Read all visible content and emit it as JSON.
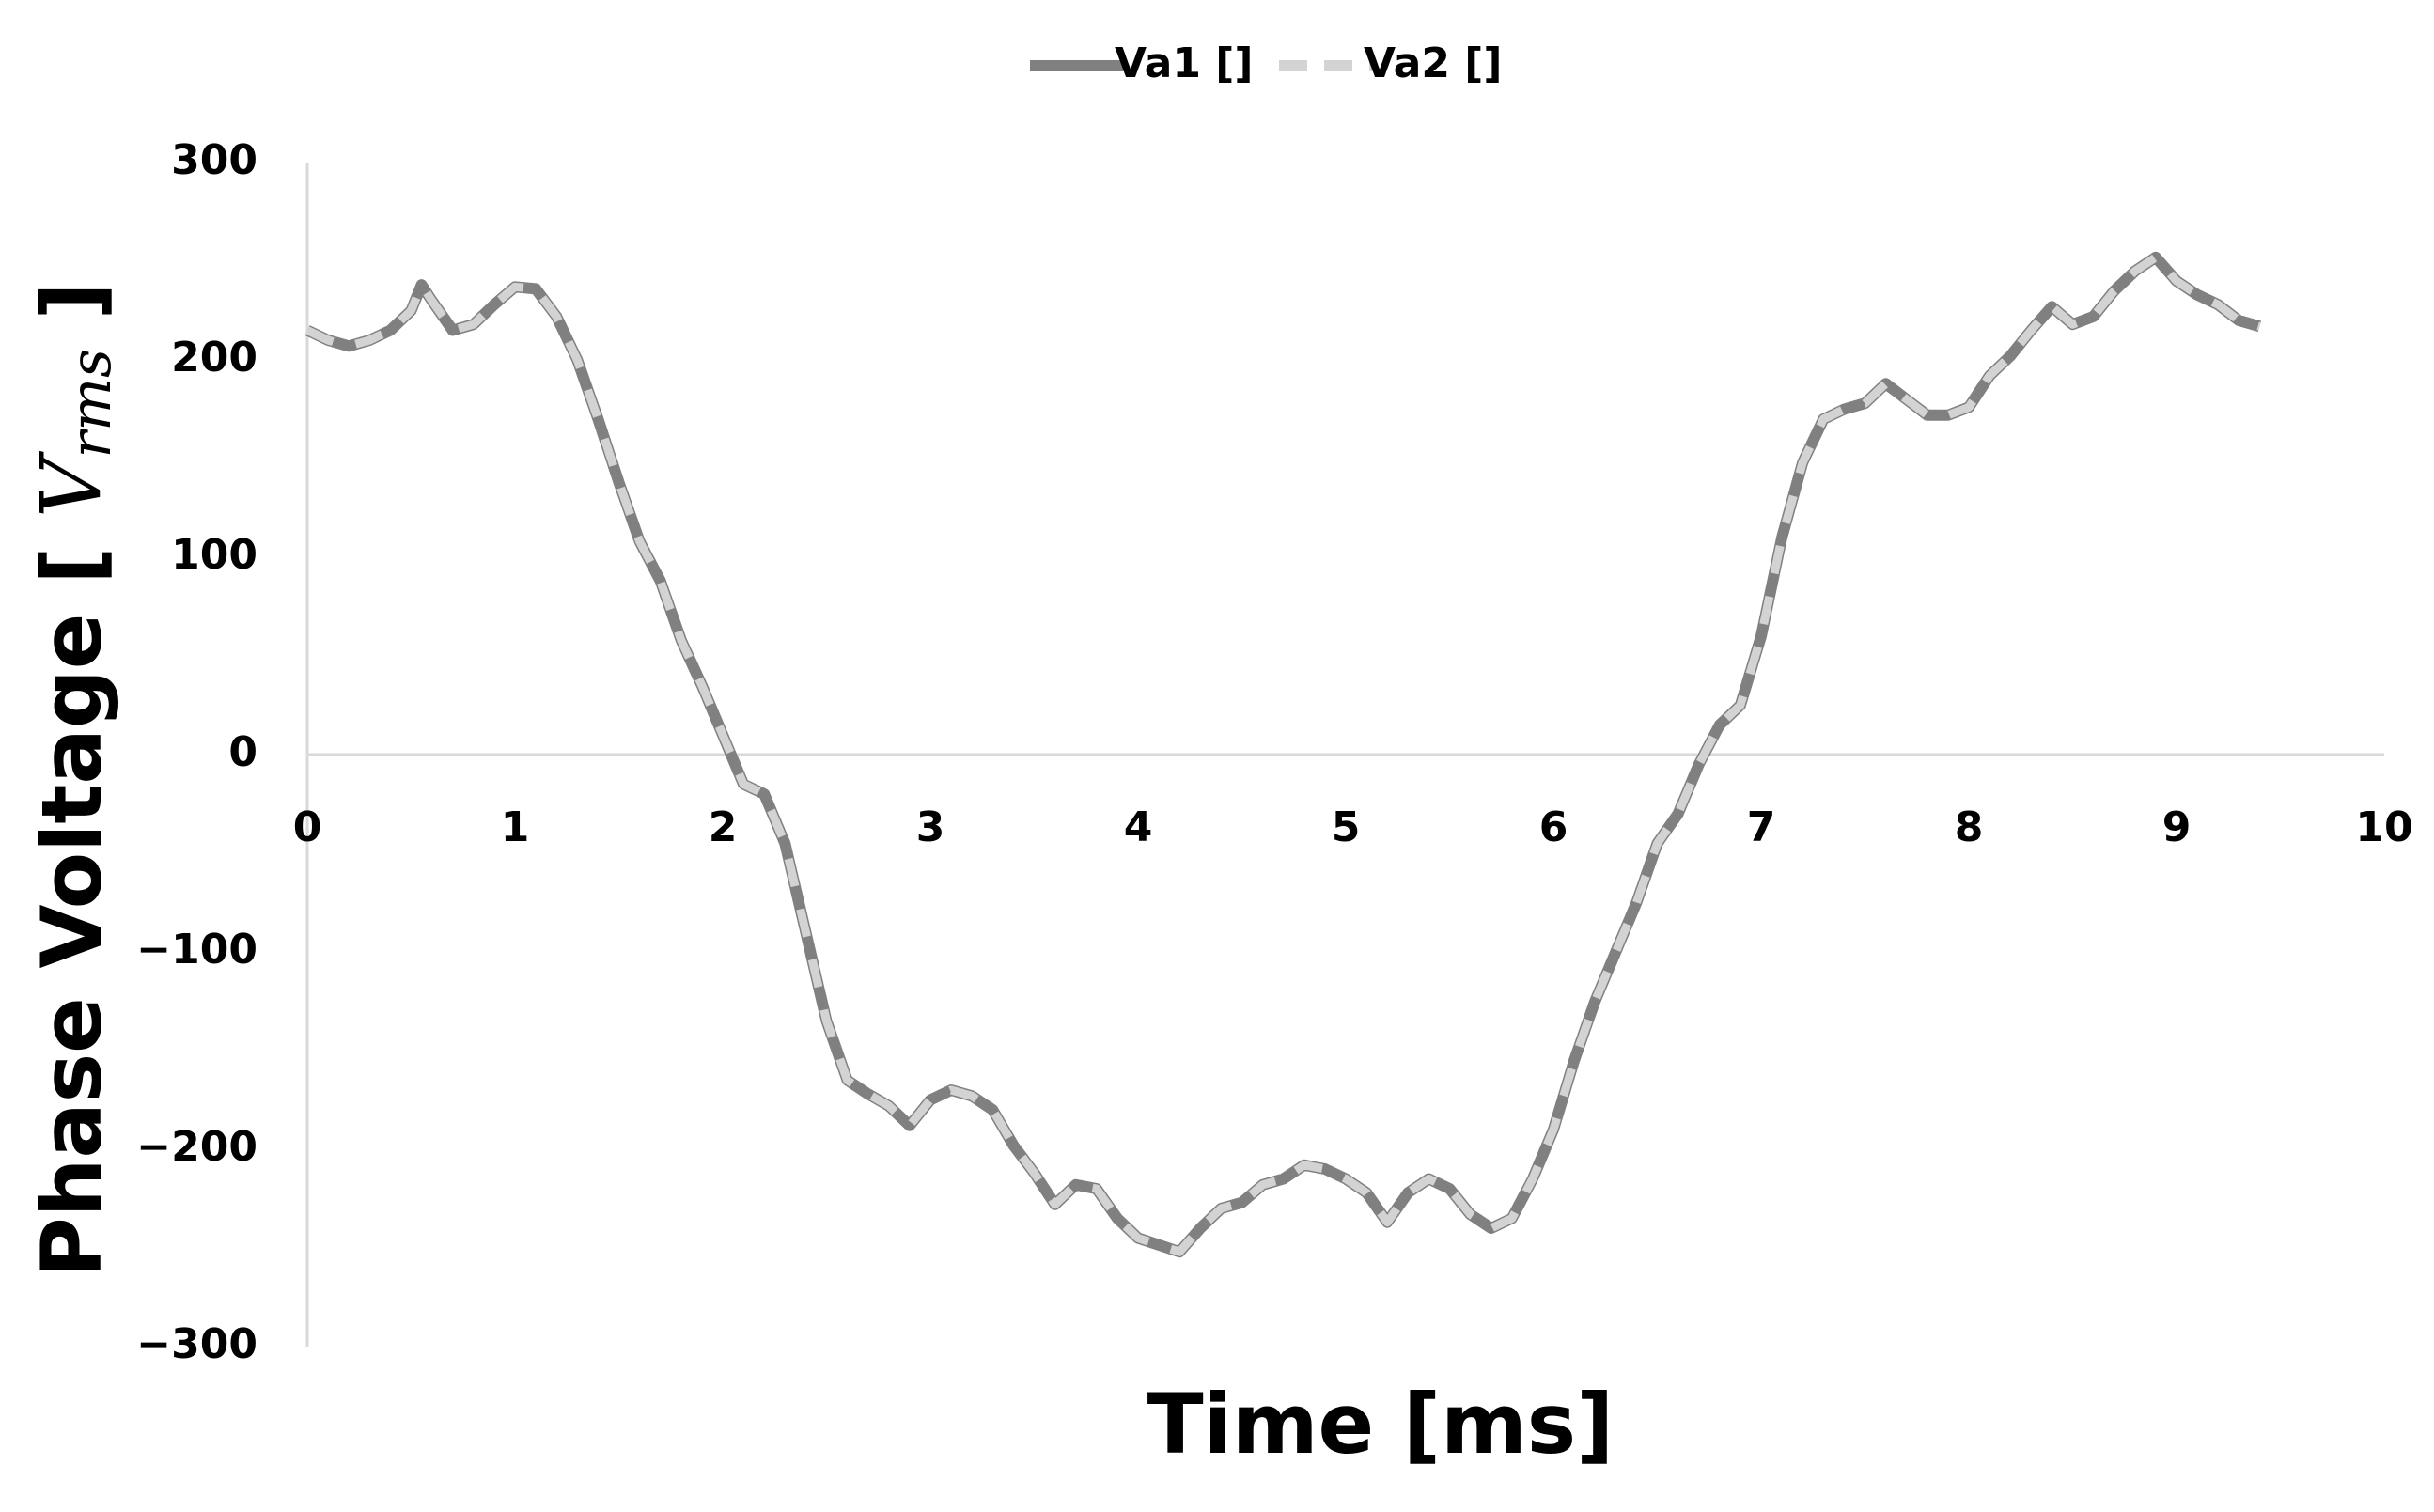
{
  "chart_data": {
    "type": "line",
    "ylabel_parts": [
      "Phase Voltage [ ",
      "V",
      "rms",
      " ]"
    ],
    "xlabel": "Time [ms]",
    "x": [
      0,
      0.1,
      0.2,
      0.3,
      0.4,
      0.5,
      0.55,
      0.6,
      0.7,
      0.8,
      0.9,
      1.0,
      1.1,
      1.2,
      1.3,
      1.4,
      1.5,
      1.6,
      1.7,
      1.8,
      1.9,
      2.0,
      2.1,
      2.2,
      2.3,
      2.4,
      2.5,
      2.6,
      2.7,
      2.8,
      2.9,
      3.0,
      3.1,
      3.2,
      3.3,
      3.4,
      3.5,
      3.6,
      3.7,
      3.8,
      3.9,
      4.0,
      4.2,
      4.3,
      4.4,
      4.5,
      4.6,
      4.7,
      4.8,
      4.9,
      5.0,
      5.1,
      5.2,
      5.3,
      5.4,
      5.5,
      5.6,
      5.7,
      5.8,
      5.9,
      6.0,
      6.1,
      6.2,
      6.3,
      6.4,
      6.5,
      6.6,
      6.7,
      6.8,
      6.9,
      7.0,
      7.1,
      7.2,
      7.3,
      7.4,
      7.5,
      7.6,
      7.7,
      7.8,
      7.9,
      8.0,
      8.1,
      8.2,
      8.3,
      8.4,
      8.5,
      8.6,
      8.7,
      8.8,
      8.9,
      9.0,
      9.1,
      9.2,
      9.3,
      9.4
    ],
    "series": [
      {
        "name": "Va1 []",
        "color": "#808080",
        "dashed": false,
        "values": [
          215,
          210,
          207,
          210,
          215,
          225,
          238,
          230,
          215,
          218,
          228,
          237,
          236,
          222,
          200,
          170,
          138,
          108,
          88,
          58,
          35,
          10,
          -15,
          -20,
          -45,
          -90,
          -135,
          -165,
          -172,
          -178,
          -188,
          -175,
          -170,
          -173,
          -180,
          -198,
          -212,
          -228,
          -218,
          -220,
          -235,
          -245,
          -252,
          -240,
          -230,
          -227,
          -218,
          -215,
          -208,
          -210,
          -215,
          -222,
          -237,
          -222,
          -215,
          -220,
          -233,
          -240,
          -235,
          -215,
          -190,
          -155,
          -125,
          -100,
          -75,
          -45,
          -30,
          -5,
          15,
          25,
          60,
          110,
          148,
          170,
          175,
          178,
          188,
          180,
          172,
          172,
          176,
          192,
          202,
          215,
          227,
          218,
          222,
          235,
          245,
          252,
          240,
          233,
          228,
          220,
          217
        ]
      },
      {
        "name": "Va2 []",
        "color": "#d3d3d3",
        "dashed": true,
        "values": [
          215,
          210,
          207,
          210,
          215,
          225,
          238,
          230,
          215,
          218,
          228,
          237,
          236,
          222,
          200,
          170,
          138,
          108,
          88,
          58,
          35,
          10,
          -15,
          -20,
          -45,
          -90,
          -135,
          -165,
          -172,
          -178,
          -188,
          -175,
          -170,
          -173,
          -180,
          -198,
          -212,
          -228,
          -218,
          -220,
          -235,
          -245,
          -252,
          -240,
          -230,
          -227,
          -218,
          -215,
          -208,
          -210,
          -215,
          -222,
          -237,
          -222,
          -215,
          -220,
          -233,
          -240,
          -235,
          -215,
          -190,
          -155,
          -125,
          -100,
          -75,
          -45,
          -30,
          -5,
          15,
          25,
          60,
          110,
          148,
          170,
          175,
          178,
          188,
          180,
          172,
          172,
          176,
          192,
          202,
          215,
          227,
          218,
          222,
          235,
          245,
          252,
          240,
          233,
          228,
          220,
          217
        ]
      }
    ],
    "xlim": [
      0,
      10
    ],
    "xticks": [
      0,
      1,
      2,
      3,
      4,
      5,
      6,
      7,
      8,
      9,
      10
    ],
    "ylim": [
      -300,
      300
    ],
    "yticks": [
      300,
      200,
      100,
      0,
      {
        "value": -100,
        "label": "−100"
      },
      {
        "value": -200,
        "label": "−200"
      },
      {
        "value": -300,
        "label": "−300"
      }
    ],
    "legend": "top"
  }
}
